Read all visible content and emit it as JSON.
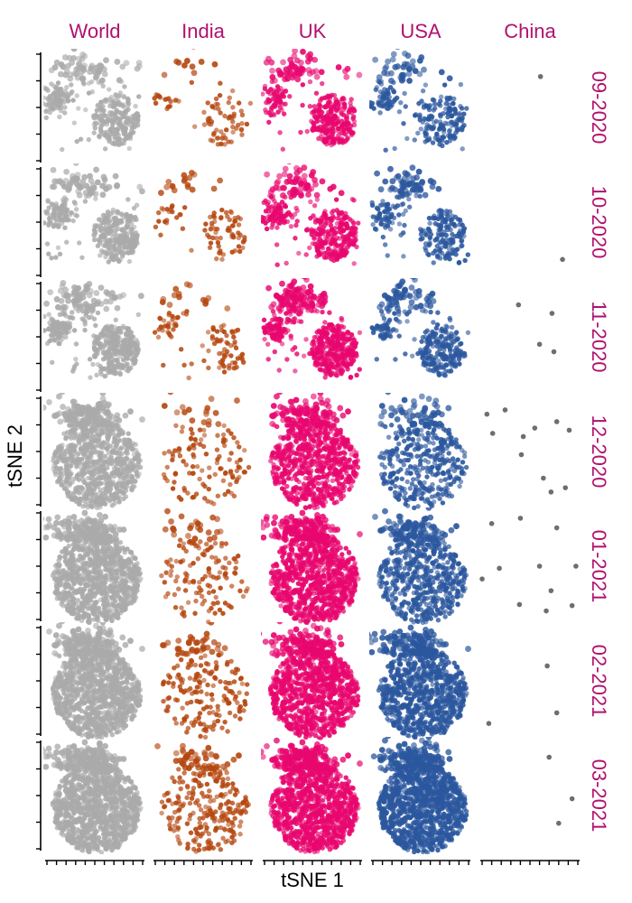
{
  "chart_data": {
    "type": "scatter",
    "layout": "facet-grid",
    "xlabel": "tSNE 1",
    "ylabel": "tSNE 2",
    "columns": [
      "World",
      "India",
      "UK",
      "USA",
      "China"
    ],
    "rows": [
      "09-2020",
      "10-2020",
      "11-2020",
      "12-2020",
      "01-2021",
      "02-2021",
      "03-2021"
    ],
    "xlim": [
      -50,
      50
    ],
    "ylim": [
      -50,
      50
    ],
    "x_tick_values": [
      -50,
      -40,
      -30,
      -20,
      -10,
      0,
      10,
      20,
      30,
      40,
      50
    ],
    "y_tick_values": [
      -50,
      -25,
      0,
      25,
      50
    ],
    "colors": {
      "World": "#aaaaaa",
      "India": "#b5470f",
      "UK": "#e8076f",
      "USA": "#2b579e",
      "China": "#555555",
      "strip_text": "#b0116f"
    },
    "point_counts": {
      "World": [
        400,
        420,
        520,
        900,
        1100,
        1200,
        1300
      ],
      "India": [
        90,
        100,
        110,
        130,
        150,
        200,
        280
      ],
      "UK": [
        380,
        420,
        550,
        800,
        1000,
        1000,
        1100
      ],
      "USA": [
        260,
        280,
        320,
        400,
        600,
        900,
        1200
      ],
      "China": [
        1,
        1,
        4,
        11,
        11,
        4,
        3
      ]
    },
    "china_points": {
      "09-2020": [
        [
          11,
          29
        ]
      ],
      "10-2020": [
        [
          34,
          -35
        ]
      ],
      "11-2020": [
        [
          -12,
          30
        ],
        [
          23,
          22
        ],
        [
          10,
          -7
        ],
        [
          25,
          -14
        ]
      ],
      "12-2020": [
        [
          -45,
          35
        ],
        [
          -26,
          39
        ],
        [
          -39,
          17
        ],
        [
          -7,
          14
        ],
        [
          5,
          22
        ],
        [
          28,
          28
        ],
        [
          41,
          20
        ],
        [
          -9,
          -3
        ],
        [
          14,
          -25
        ],
        [
          22,
          -38
        ],
        [
          37,
          -34
        ]
      ],
      "01-2021": [
        [
          -10,
          45
        ],
        [
          -40,
          40
        ],
        [
          28,
          36
        ],
        [
          -32,
          -2
        ],
        [
          -50,
          -12
        ],
        [
          22,
          -23
        ],
        [
          10,
          0
        ],
        [
          48,
          0
        ],
        [
          -11,
          -36
        ],
        [
          17,
          -42
        ],
        [
          44,
          -37
        ]
      ],
      "02-2021": [
        [
          18,
          14
        ],
        [
          -43,
          -40
        ],
        [
          28,
          -30
        ],
        [
          -1,
          -65
        ]
      ],
      "03-2021": [
        [
          20,
          36
        ],
        [
          44,
          -3
        ],
        [
          30,
          -26
        ]
      ]
    }
  }
}
